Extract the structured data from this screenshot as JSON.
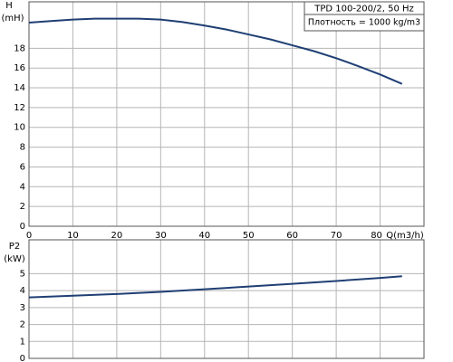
{
  "chart_data": [
    {
      "type": "line",
      "title": "TPD 100-200/2, 50 Hz",
      "subtitle": "Плотность = 1000 kg/m3",
      "ylabel": "H",
      "yunit": "(mH)",
      "xlabel": "Q(m3/h)",
      "x": [
        0,
        5,
        10,
        15,
        20,
        25,
        30,
        35,
        40,
        45,
        50,
        55,
        60,
        65,
        70,
        75,
        80,
        85
      ],
      "series": [
        {
          "color": "#1f3f74",
          "values": [
            20.6,
            20.75,
            20.9,
            21.0,
            21.0,
            21.0,
            20.9,
            20.65,
            20.3,
            19.9,
            19.4,
            18.9,
            18.3,
            17.7,
            17.0,
            16.2,
            15.35,
            14.4
          ]
        }
      ],
      "xlim": [
        0,
        90
      ],
      "xticks": [
        0,
        10,
        20,
        30,
        40,
        50,
        60,
        70,
        80
      ],
      "ylim": [
        0,
        22.7
      ],
      "yticks": [
        0,
        2,
        4,
        6,
        8,
        10,
        12,
        14,
        16,
        18
      ],
      "grid": true
    },
    {
      "type": "line",
      "ylabel": "P2",
      "yunit": "(kW)",
      "x": [
        0,
        10,
        20,
        30,
        40,
        50,
        60,
        70,
        80,
        85
      ],
      "series": [
        {
          "color": "#1f3f74",
          "values": [
            3.6,
            3.7,
            3.8,
            3.93,
            4.08,
            4.24,
            4.4,
            4.57,
            4.75,
            4.85
          ]
        }
      ],
      "xlim": [
        0,
        90
      ],
      "ylim": [
        0,
        7
      ],
      "yticks": [
        0,
        1,
        2,
        3,
        4,
        5
      ],
      "grid": true
    }
  ]
}
